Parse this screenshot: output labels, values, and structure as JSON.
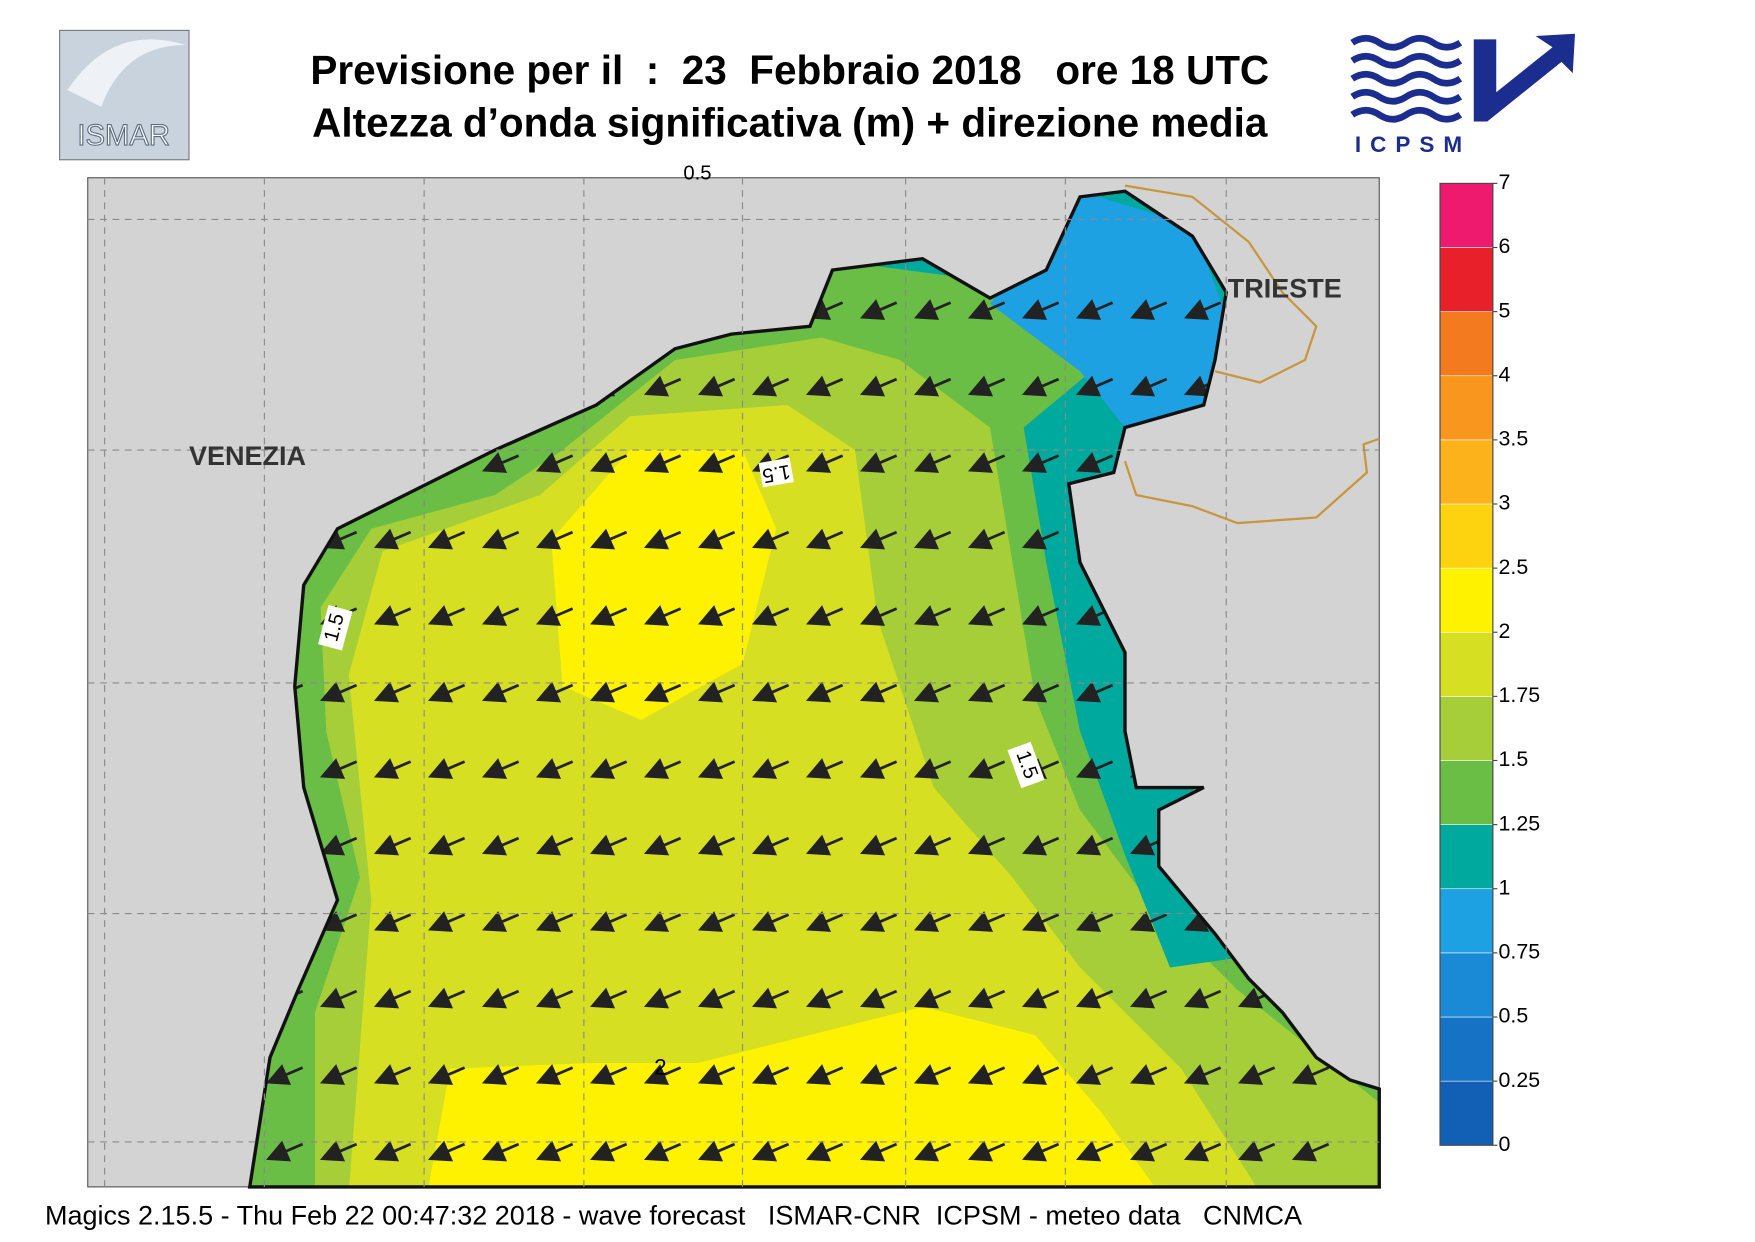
{
  "header": {
    "title": "Previsione per il  :  23  Febbraio 2018   ore 18 UTC",
    "subtitle": "Altezza d’onda significativa (m) + direzione media",
    "logo_left": "ISMAR",
    "logo_right": "ICPSM"
  },
  "map": {
    "places": [
      "VENEZIA",
      "TRIESTE"
    ],
    "contour_labels": [
      "0.5",
      "1.5",
      "1.5",
      "1.5",
      "2"
    ]
  },
  "legend": {
    "levels": [
      0,
      0.25,
      0.5,
      0.75,
      1,
      1.25,
      1.5,
      1.75,
      2,
      2.5,
      3,
      3.5,
      4,
      5,
      6,
      7
    ],
    "colors": [
      "#1160b5",
      "#1672c4",
      "#1b8ad6",
      "#1da1e2",
      "#00a99d",
      "#6abd45",
      "#a6ce39",
      "#d7df23",
      "#fff200",
      "#fdd20f",
      "#fbb21b",
      "#f8961d",
      "#f47a20",
      "#e8202a",
      "#ee1a6e"
    ]
  },
  "footer": "Magics 2.15.5 - Thu Feb 22 00:47:32 2018 - wave forecast   ISMAR-CNR  ICPSM - meteo data   CNMCA"
}
